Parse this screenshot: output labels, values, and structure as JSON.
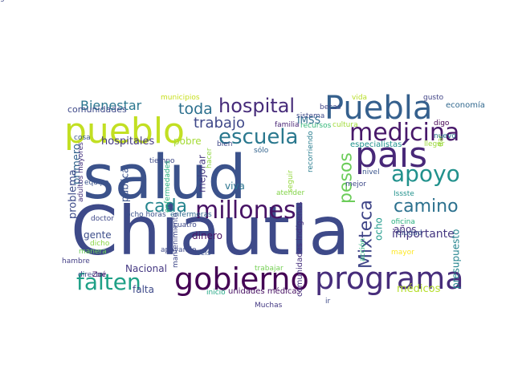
{
  "wordcloud": {
    "background": "#ffffff",
    "words": [
      {
        "text": "Chiautla",
        "color": "#3e4a89",
        "vertical": false
      },
      {
        "text": "salud",
        "color": "#3b528b",
        "vertical": false
      },
      {
        "text": "pueblo",
        "color": "#c2df23",
        "vertical": false
      },
      {
        "text": "Puebla",
        "color": "#35608d",
        "vertical": false
      },
      {
        "text": "país",
        "color": "#482878",
        "vertical": false
      },
      {
        "text": "programa",
        "color": "#472d7b",
        "vertical": false
      },
      {
        "text": "gobierno",
        "color": "#440154",
        "vertical": false
      },
      {
        "text": "millones",
        "color": "#471365",
        "vertical": false
      },
      {
        "text": "medicina",
        "color": "#48186a",
        "vertical": false
      },
      {
        "text": "apoyo",
        "color": "#21918c",
        "vertical": false
      },
      {
        "text": "escuela",
        "color": "#2a788e",
        "vertical": false
      },
      {
        "text": "hospital",
        "color": "#472c7a",
        "vertical": false
      },
      {
        "text": "falten",
        "color": "#1fa187",
        "vertical": false
      },
      {
        "text": "Mixteca",
        "color": "#404688",
        "vertical": true
      },
      {
        "text": "pesos",
        "color": "#6ccd5a",
        "vertical": true
      },
      {
        "text": "camino",
        "color": "#2c718e",
        "vertical": false
      },
      {
        "text": "cada",
        "color": "#25858e",
        "vertical": false
      },
      {
        "text": "toda",
        "color": "#2d708e",
        "vertical": false
      },
      {
        "text": "trabajo",
        "color": "#3f4889",
        "vertical": false
      },
      {
        "text": "Bienestar",
        "color": "#2a768e",
        "vertical": false
      },
      {
        "text": "importante",
        "color": "#453781",
        "vertical": false
      },
      {
        "text": "presupuesto",
        "color": "#25848e",
        "vertical": true
      },
      {
        "text": "médicos",
        "color": "#b5de2b",
        "vertical": false
      },
      {
        "text": "hospitales",
        "color": "#453882",
        "vertical": false
      },
      {
        "text": "IMSS",
        "color": "#2e6e8e",
        "vertical": false
      },
      {
        "text": "comunidades",
        "color": "#3e4989",
        "vertical": false
      },
      {
        "text": "pobre",
        "color": "#a5db36",
        "vertical": false
      },
      {
        "text": "primero",
        "color": "#33638d",
        "vertical": true
      },
      {
        "text": "problema",
        "color": "#3e4c8a",
        "vertical": true
      },
      {
        "text": "mejorar",
        "color": "#453781",
        "vertical": true
      },
      {
        "text": "viva",
        "color": "#2b748e",
        "vertical": false
      },
      {
        "text": "dinero",
        "color": "#471164",
        "vertical": false
      },
      {
        "text": "gente",
        "color": "#3d4e8a",
        "vertical": false
      },
      {
        "text": "falta",
        "color": "#3e4a89",
        "vertical": false
      },
      {
        "text": "Nacional",
        "color": "#453882",
        "vertical": false
      },
      {
        "text": "ocho",
        "color": "#1f9a8a",
        "vertical": true
      },
      {
        "text": "años",
        "color": "#46327e",
        "vertical": false
      },
      {
        "text": "pública",
        "color": "#3b528b",
        "vertical": true
      },
      {
        "text": "unidades médicas",
        "color": "#471063",
        "vertical": false
      },
      {
        "text": "comunidades indígenas",
        "color": "#46307e",
        "vertical": true
      },
      {
        "text": "especialistas",
        "color": "#20928c",
        "vertical": false
      },
      {
        "text": "familia",
        "color": "#482475",
        "vertical": false
      },
      {
        "text": "sistema",
        "color": "#3e4a89",
        "vertical": false
      },
      {
        "text": "recursos",
        "color": "#35b779",
        "vertical": false
      },
      {
        "text": "cultura",
        "color": "#a0da39",
        "vertical": false
      },
      {
        "text": "vida",
        "color": "#b8de29",
        "vertical": false
      },
      {
        "text": "gusto",
        "color": "#414487",
        "vertical": false
      },
      {
        "text": "economía",
        "color": "#31688e",
        "vertical": false
      },
      {
        "text": "digo",
        "color": "#440154",
        "vertical": false
      },
      {
        "text": "municipios",
        "color": "#c8e020",
        "vertical": false
      },
      {
        "text": "becas",
        "color": "#404688",
        "vertical": false
      },
      {
        "text": "dar",
        "color": "#9dd93b",
        "vertical": true
      },
      {
        "text": "nuevo",
        "color": "#2a788e",
        "vertical": false
      },
      {
        "text": "llegar",
        "color": "#9bd93c",
        "vertical": false
      },
      {
        "text": "cosa",
        "color": "#39568c",
        "vertical": false
      },
      {
        "text": "tiempo",
        "color": "#3e4a89",
        "vertical": false
      },
      {
        "text": "equipo",
        "color": "#3a538b",
        "vertical": false
      },
      {
        "text": "sólo",
        "color": "#33638d",
        "vertical": false
      },
      {
        "text": "bien",
        "color": "#3f4788",
        "vertical": false
      },
      {
        "text": "hacer",
        "color": "#90d743",
        "vertical": true
      },
      {
        "text": "seguir",
        "color": "#95d840",
        "vertical": true
      },
      {
        "text": "recorriendo",
        "color": "#287c8e",
        "vertical": true
      },
      {
        "text": "nivel",
        "color": "#3a548c",
        "vertical": false
      },
      {
        "text": "mejor",
        "color": "#3e4a89",
        "vertical": false
      },
      {
        "text": "enfermedades",
        "color": "#29af7f",
        "vertical": true
      },
      {
        "text": "adultos mayores",
        "color": "#46337f",
        "vertical": true
      },
      {
        "text": "ocho horas",
        "color": "#3b518b",
        "vertical": false
      },
      {
        "text": "enfermeras",
        "color": "#306a8e",
        "vertical": false
      },
      {
        "text": "atender",
        "color": "#84d44b",
        "vertical": false
      },
      {
        "text": "Issste",
        "color": "#21918c",
        "vertical": false
      },
      {
        "text": "oficina",
        "color": "#29af7f",
        "vertical": false
      },
      {
        "text": "Ciudad",
        "color": "#3b528b",
        "vertical": false
      },
      {
        "text": "doctor",
        "color": "#3f4889",
        "vertical": false
      },
      {
        "text": "cuatro",
        "color": "#3e4a89",
        "vertical": false
      },
      {
        "text": "dicho",
        "color": "#8bd646",
        "vertical": false
      },
      {
        "text": "manera",
        "color": "#6ccd5a",
        "vertical": false
      },
      {
        "text": "apoyando",
        "color": "#3e4a89",
        "vertical": false
      },
      {
        "text": "seis",
        "color": "#3b528b",
        "vertical": false
      },
      {
        "text": "mayor",
        "color": "#fde725",
        "vertical": false
      },
      {
        "text": "hambre",
        "color": "#433e85",
        "vertical": false
      },
      {
        "text": "mantenimiento",
        "color": "#3f4889",
        "vertical": true
      },
      {
        "text": "director",
        "color": "#3e4989",
        "vertical": false
      },
      {
        "text": "Zoé",
        "color": "#48186a",
        "vertical": false
      },
      {
        "text": "trabajar",
        "color": "#75d054",
        "vertical": false
      },
      {
        "text": "inició",
        "color": "#22a785",
        "vertical": false
      },
      {
        "text": "Muchas",
        "color": "#443983",
        "vertical": false
      },
      {
        "text": "acción",
        "color": "#2db27d",
        "vertical": true
      },
      {
        "text": "ir",
        "color": "#3e4a89",
        "vertical": false
      },
      {
        "text": "gobernador",
        "color": "#3e4a89",
        "vertical": false
      }
    ]
  }
}
